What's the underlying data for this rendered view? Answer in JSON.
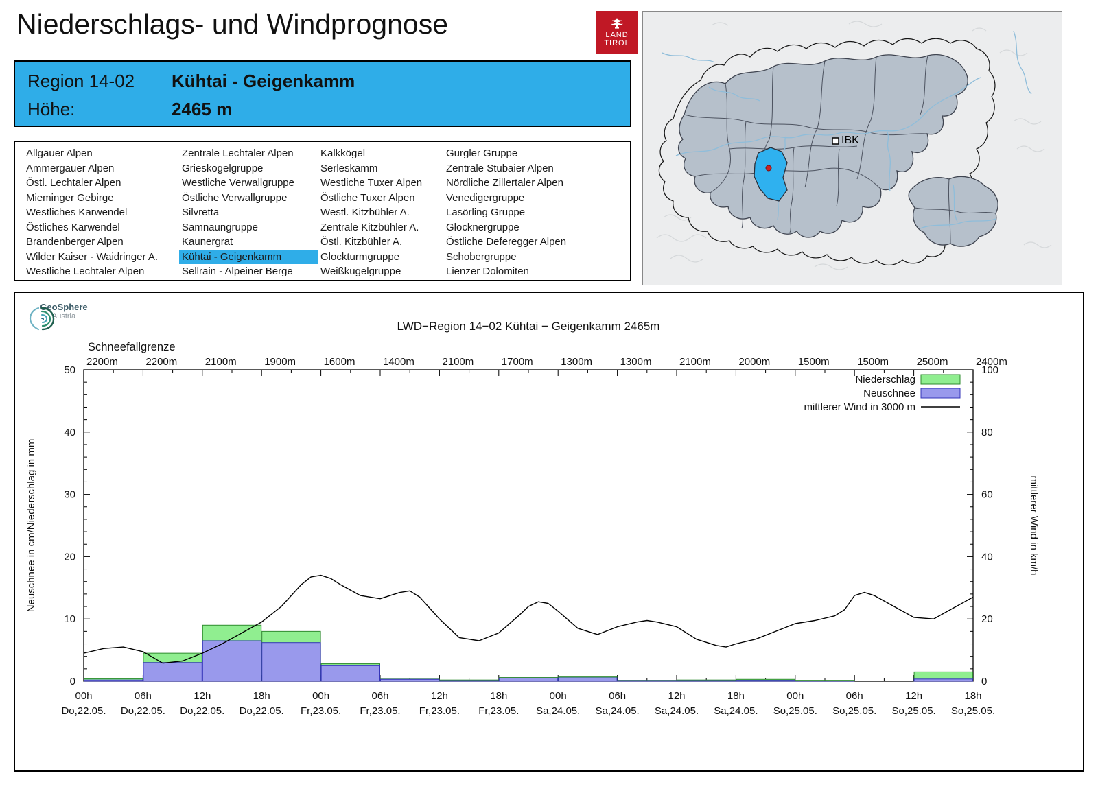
{
  "page": {
    "title": "Niederschlags- und Windprognose"
  },
  "logo": {
    "line1": "LAND",
    "line2": "TIROL"
  },
  "colors": {
    "accent": "#2FADE8",
    "logo_red": "#C01825",
    "map_region_fill": "#B6C0CB",
    "map_highlight": "#2FB1EF"
  },
  "region_box": {
    "region_label": "Region 14-02",
    "region_name": "Kühtai - Geigenkamm",
    "hoehe_label": "Höhe:",
    "hoehe_value": "2465 m"
  },
  "region_list": {
    "selected": "Kühtai - Geigenkamm",
    "columns": [
      [
        "Allgäuer Alpen",
        "Ammergauer Alpen",
        "Östl. Lechtaler Alpen",
        "Mieminger Gebirge",
        "Westliches Karwendel",
        "Östliches Karwendel",
        "Brandenberger Alpen",
        "Wilder Kaiser - Waidringer A.",
        "Westliche Lechtaler Alpen"
      ],
      [
        "Zentrale Lechtaler Alpen",
        "Grieskogelgruppe",
        "Westliche Verwallgruppe",
        "Östliche Verwallgruppe",
        "Silvretta",
        "Samnaungruppe",
        "Kaunergrat",
        "Kühtai - Geigenkamm",
        "Sellrain - Alpeiner Berge"
      ],
      [
        "Kalkkögel",
        "Serleskamm",
        "Westliche Tuxer Alpen",
        "Östliche Tuxer Alpen",
        "Westl. Kitzbühler A.",
        "Zentrale Kitzbühler A.",
        "Östl. Kitzbühler A.",
        "Glockturmgruppe",
        "Weißkugelgruppe"
      ],
      [
        "Gurgler Gruppe",
        "Zentrale Stubaier Alpen",
        "Nördliche Zillertaler Alpen",
        "Venedigergruppe",
        "Lasörling Gruppe",
        "Glocknergruppe",
        "Östliche Deferegger Alpen",
        "Schobergruppe",
        "Lienzer Dolomiten"
      ]
    ]
  },
  "map": {
    "label_ibk": "IBK"
  },
  "geosphere": {
    "name": "GeoSphere",
    "sub": "Austria"
  },
  "chart_data": {
    "type": "bar+line",
    "title": "LWD−Region 14−02 Kühtai − Geigenkamm 2465m",
    "top_axis_label": "Schneefallgrenze",
    "snowline_values": [
      "2200m",
      "2200m",
      "2100m",
      "1900m",
      "1600m",
      "1400m",
      "2100m",
      "1700m",
      "1300m",
      "1300m",
      "2100m",
      "2000m",
      "1500m",
      "1500m",
      "2500m",
      "2400m"
    ],
    "ylabel_left": "Neuschnee in cm/Niederschlag in mm",
    "ylabel_right": "mittlerer Wind in km/h",
    "ylim_left": [
      0,
      50
    ],
    "ylim_right": [
      0,
      100
    ],
    "x_hours_range": [
      0,
      90
    ],
    "grid": false,
    "legend_position": "top-right",
    "legend": [
      {
        "label": "Niederschlag",
        "type": "box"
      },
      {
        "label": "Neuschnee",
        "type": "box"
      },
      {
        "label": "mittlerer Wind in 3000 m",
        "type": "line"
      }
    ],
    "colors": {
      "niederschlag_fill": "#90EE90",
      "niederschlag_stroke": "#2E8B2E",
      "neuschnee_fill": "#9999EC",
      "neuschnee_stroke": "#3434B8",
      "wind_line": "#000000"
    },
    "x_ticks": [
      {
        "hour": "00h",
        "date": "Do,22.05."
      },
      {
        "hour": "06h",
        "date": "Do,22.05."
      },
      {
        "hour": "12h",
        "date": "Do,22.05."
      },
      {
        "hour": "18h",
        "date": "Do,22.05."
      },
      {
        "hour": "00h",
        "date": "Fr,23.05."
      },
      {
        "hour": "06h",
        "date": "Fr,23.05."
      },
      {
        "hour": "12h",
        "date": "Fr,23.05."
      },
      {
        "hour": "18h",
        "date": "Fr,23.05."
      },
      {
        "hour": "00h",
        "date": "Sa,24.05."
      },
      {
        "hour": "06h",
        "date": "Sa,24.05."
      },
      {
        "hour": "12h",
        "date": "Sa,24.05."
      },
      {
        "hour": "18h",
        "date": "Sa,24.05."
      },
      {
        "hour": "00h",
        "date": "So,25.05."
      },
      {
        "hour": "06h",
        "date": "So,25.05."
      },
      {
        "hour": "12h",
        "date": "So,25.05."
      },
      {
        "hour": "18h",
        "date": "So,25.05."
      }
    ],
    "bars_units": {
      "niederschlag": "mm",
      "neuschnee": "cm"
    },
    "bars": [
      {
        "start": 0,
        "end": 6,
        "niederschlag": 0.4,
        "neuschnee": 0.2
      },
      {
        "start": 6,
        "end": 12,
        "niederschlag": 4.5,
        "neuschnee": 3.0
      },
      {
        "start": 12,
        "end": 18,
        "niederschlag": 9.0,
        "neuschnee": 6.5
      },
      {
        "start": 18,
        "end": 24,
        "niederschlag": 8.0,
        "neuschnee": 6.2
      },
      {
        "start": 24,
        "end": 30,
        "niederschlag": 2.8,
        "neuschnee": 2.5
      },
      {
        "start": 30,
        "end": 36,
        "niederschlag": 0.35,
        "neuschnee": 0.3
      },
      {
        "start": 36,
        "end": 42,
        "niederschlag": 0.2,
        "neuschnee": 0.1
      },
      {
        "start": 42,
        "end": 48,
        "niederschlag": 0.6,
        "neuschnee": 0.5
      },
      {
        "start": 48,
        "end": 54,
        "niederschlag": 0.7,
        "neuschnee": 0.55
      },
      {
        "start": 54,
        "end": 60,
        "niederschlag": 0.15,
        "neuschnee": 0.1
      },
      {
        "start": 60,
        "end": 66,
        "niederschlag": 0.2,
        "neuschnee": 0.1
      },
      {
        "start": 66,
        "end": 72,
        "niederschlag": 0.3,
        "neuschnee": 0.15
      },
      {
        "start": 72,
        "end": 78,
        "niederschlag": 0.15,
        "neuschnee": 0.05
      },
      {
        "start": 84,
        "end": 90,
        "niederschlag": 1.5,
        "neuschnee": 0.35
      }
    ],
    "wind": {
      "unit": "km/h",
      "points": [
        [
          0,
          9
        ],
        [
          2,
          10.5
        ],
        [
          4,
          11
        ],
        [
          6,
          9.5
        ],
        [
          8,
          5.8
        ],
        [
          10,
          6.5
        ],
        [
          12,
          9
        ],
        [
          14,
          12
        ],
        [
          16,
          15.5
        ],
        [
          18,
          19
        ],
        [
          20,
          24
        ],
        [
          22,
          31
        ],
        [
          23,
          33.5
        ],
        [
          24,
          34
        ],
        [
          25,
          33
        ],
        [
          26,
          31
        ],
        [
          28,
          27.5
        ],
        [
          30,
          26.5
        ],
        [
          32,
          28.5
        ],
        [
          33,
          29
        ],
        [
          34,
          27
        ],
        [
          36,
          20
        ],
        [
          38,
          14
        ],
        [
          40,
          13
        ],
        [
          42,
          15.5
        ],
        [
          44,
          21
        ],
        [
          45,
          24
        ],
        [
          46,
          25.5
        ],
        [
          47,
          25
        ],
        [
          48,
          22.5
        ],
        [
          50,
          17
        ],
        [
          52,
          15
        ],
        [
          54,
          17.5
        ],
        [
          56,
          19
        ],
        [
          57,
          19.5
        ],
        [
          58,
          19
        ],
        [
          60,
          17.5
        ],
        [
          62,
          13.5
        ],
        [
          64,
          11.5
        ],
        [
          65,
          11
        ],
        [
          66,
          12
        ],
        [
          68,
          13.5
        ],
        [
          70,
          16
        ],
        [
          72,
          18.5
        ],
        [
          74,
          19.5
        ],
        [
          76,
          21
        ],
        [
          77,
          23
        ],
        [
          78,
          27.5
        ],
        [
          79,
          28.5
        ],
        [
          80,
          27.5
        ],
        [
          82,
          24
        ],
        [
          84,
          20.5
        ],
        [
          86,
          20
        ],
        [
          88,
          23.5
        ],
        [
          90,
          27
        ]
      ]
    }
  }
}
